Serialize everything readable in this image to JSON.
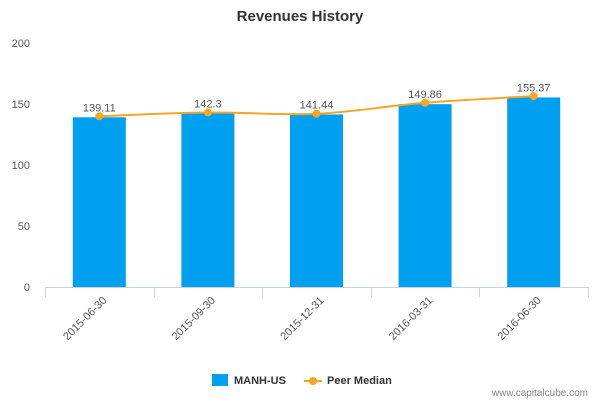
{
  "chart_data": {
    "type": "bar",
    "title": "Revenues History",
    "categories": [
      "2015-06-30",
      "2015-09-30",
      "2015-12-31",
      "2016-03-31",
      "2016-06-30"
    ],
    "series": [
      {
        "name": "MANH-US",
        "type": "bar",
        "values": [
          139.11,
          142.3,
          141.44,
          149.86,
          155.37
        ]
      },
      {
        "name": "Peer Median",
        "type": "line",
        "values": [
          140.0,
          143.0,
          142.0,
          151.0,
          156.5
        ]
      }
    ],
    "data_labels": [
      "139.11",
      "142.3",
      "141.44",
      "149.86",
      "155.37"
    ],
    "ylim": [
      0,
      200
    ],
    "yticks": [
      0,
      50,
      100,
      150,
      200
    ],
    "grid": false,
    "legend_position": "bottom"
  },
  "colors": {
    "bar": "#00a0f0",
    "line": "#f5a623",
    "axis": "#c8d3e0",
    "text": "#555555"
  },
  "credit": "www.capitalcube.com"
}
